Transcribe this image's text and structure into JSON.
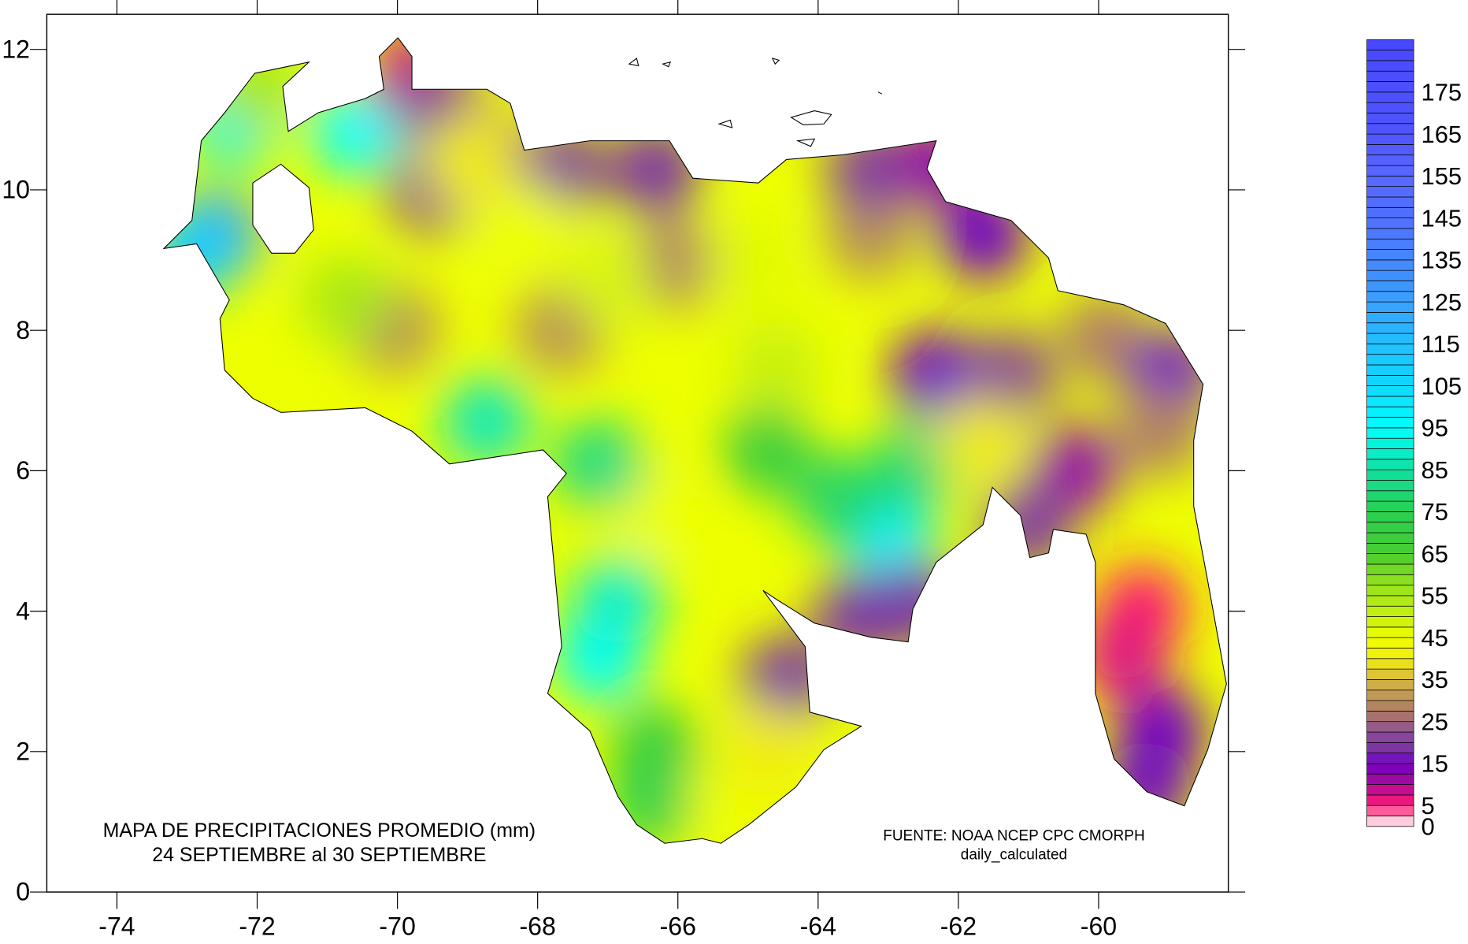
{
  "map": {
    "title_line1": "MAPA DE PRECIPITACIONES PROMEDIO (mm)",
    "title_line2": "24 SEPTIEMBRE al  30  SEPTIEMBRE",
    "source_line1": "FUENTE: NOAA NCEP CPC CMORPH",
    "source_line2": "daily_calculated"
  },
  "chart_data": {
    "type": "heatmap",
    "units": "mm",
    "xlim": [
      -75,
      -58.15
    ],
    "ylim": [
      0,
      12.5
    ],
    "x_ticks": [
      "-74",
      "-72",
      "-70",
      "-68",
      "-66",
      "-64",
      "-62",
      "-60"
    ],
    "y_ticks": [
      "0",
      "2",
      "4",
      "6",
      "8",
      "10",
      "12"
    ],
    "colorbar": {
      "labels": [
        "0",
        "5",
        "15",
        "25",
        "35",
        "45",
        "55",
        "65",
        "75",
        "85",
        "95",
        "105",
        "115",
        "125",
        "135",
        "145",
        "155",
        "165",
        "175"
      ],
      "range": [
        0,
        187.5
      ],
      "step": 2.5
    },
    "base_value": 45,
    "points": [
      {
        "lon": -72.6,
        "lat": 9.36,
        "value": 125
      },
      {
        "lon": -72.9,
        "lat": 9.1,
        "value": 110
      },
      {
        "lon": -72.33,
        "lat": 10.96,
        "value": 92
      },
      {
        "lon": -72.0,
        "lat": 11.5,
        "value": 55
      },
      {
        "lon": -70.6,
        "lat": 10.83,
        "value": 95
      },
      {
        "lon": -69.8,
        "lat": 11.63,
        "value": 8
      },
      {
        "lon": -69.39,
        "lat": 11.2,
        "value": 22
      },
      {
        "lon": -69.5,
        "lat": 10.03,
        "value": 22
      },
      {
        "lon": -68.7,
        "lat": 10.6,
        "value": 35
      },
      {
        "lon": -67.66,
        "lat": 10.29,
        "value": 20
      },
      {
        "lon": -66.32,
        "lat": 10.29,
        "value": 18
      },
      {
        "lon": -66.05,
        "lat": 8.96,
        "value": 28
      },
      {
        "lon": -64.99,
        "lat": 8.96,
        "value": 47
      },
      {
        "lon": -63.25,
        "lat": 9.36,
        "value": 30
      },
      {
        "lon": -63.25,
        "lat": 10.29,
        "value": 20
      },
      {
        "lon": -62.3,
        "lat": 10.4,
        "value": 12
      },
      {
        "lon": -61.65,
        "lat": 9.36,
        "value": 15
      },
      {
        "lon": -62.32,
        "lat": 7.36,
        "value": 15
      },
      {
        "lon": -61.25,
        "lat": 7.36,
        "value": 22
      },
      {
        "lon": -59.92,
        "lat": 7.89,
        "value": 28
      },
      {
        "lon": -58.98,
        "lat": 7.36,
        "value": 15
      },
      {
        "lon": -59.11,
        "lat": 6.56,
        "value": 28
      },
      {
        "lon": -60.32,
        "lat": 6.03,
        "value": 12
      },
      {
        "lon": -59.38,
        "lat": 4.03,
        "value": 5
      },
      {
        "lon": -59.65,
        "lat": 3.36,
        "value": 7
      },
      {
        "lon": -59.11,
        "lat": 2.29,
        "value": 15
      },
      {
        "lon": -59.3,
        "lat": 1.5,
        "value": 16
      },
      {
        "lon": -62.99,
        "lat": 4.96,
        "value": 97
      },
      {
        "lon": -62.59,
        "lat": 6.03,
        "value": 80
      },
      {
        "lon": -63.7,
        "lat": 5.6,
        "value": 78
      },
      {
        "lon": -64.72,
        "lat": 6.29,
        "value": 70
      },
      {
        "lon": -63.4,
        "lat": 3.95,
        "value": 18
      },
      {
        "lon": -62.6,
        "lat": 4.1,
        "value": 18
      },
      {
        "lon": -64.45,
        "lat": 3.0,
        "value": 18
      },
      {
        "lon": -67.12,
        "lat": 3.36,
        "value": 95
      },
      {
        "lon": -66.86,
        "lat": 4.16,
        "value": 90
      },
      {
        "lon": -66.32,
        "lat": 5.5,
        "value": 45
      },
      {
        "lon": -66.32,
        "lat": 2.03,
        "value": 70
      },
      {
        "lon": -66.32,
        "lat": 1.3,
        "value": 75
      },
      {
        "lon": -65.25,
        "lat": 1.36,
        "value": 45
      },
      {
        "lon": -64.72,
        "lat": 2.03,
        "value": 40
      },
      {
        "lon": -68.73,
        "lat": 6.69,
        "value": 88
      },
      {
        "lon": -67.12,
        "lat": 6.09,
        "value": 82
      },
      {
        "lon": -70.06,
        "lat": 8.03,
        "value": 30
      },
      {
        "lon": -67.66,
        "lat": 8.03,
        "value": 30
      },
      {
        "lon": -70.73,
        "lat": 8.43,
        "value": 55
      },
      {
        "lon": -66.99,
        "lat": 8.7,
        "value": 48
      },
      {
        "lon": -64.6,
        "lat": 7.5,
        "value": 50
      },
      {
        "lon": -61.7,
        "lat": 6.4,
        "value": 40
      },
      {
        "lon": -61.0,
        "lat": 5.2,
        "value": 20
      },
      {
        "lon": -68.19,
        "lat": 9.49,
        "value": 45
      },
      {
        "lon": -69.0,
        "lat": 10.4,
        "value": 40
      }
    ]
  }
}
